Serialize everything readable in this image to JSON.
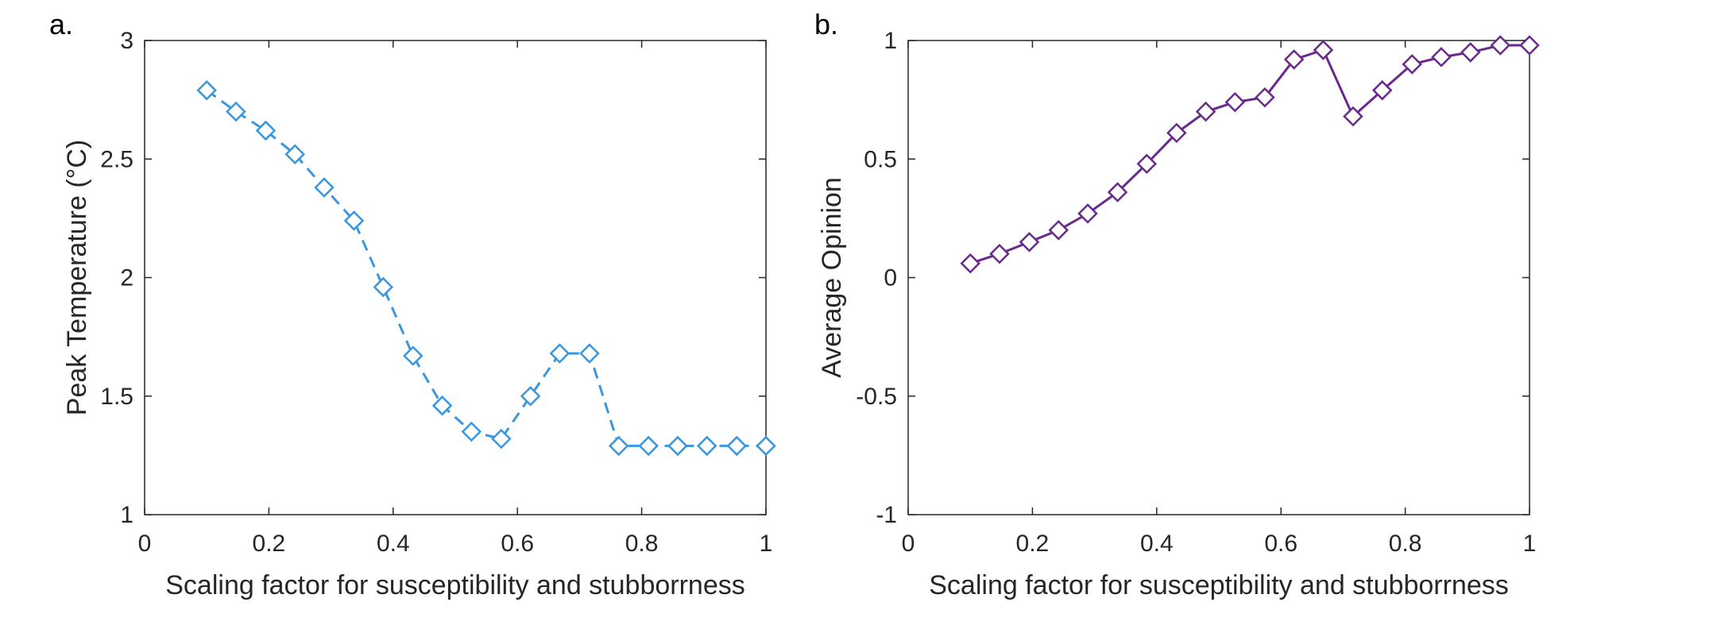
{
  "panels": {
    "a_label": "a.",
    "b_label": "b."
  },
  "chart_data": [
    {
      "type": "line",
      "panel": "a.",
      "xlabel": "Scaling factor for susceptibility and stubborrness",
      "ylabel": "Peak Temperature (°C)",
      "xlim": [
        0,
        1
      ],
      "ylim": [
        1,
        3
      ],
      "xticks": [
        0,
        0.2,
        0.4,
        0.6,
        0.8,
        1
      ],
      "xtick_labels": [
        "0",
        "0.2",
        "0.4",
        "0.6",
        "0.8",
        "1"
      ],
      "yticks": [
        1,
        1.5,
        2,
        2.5,
        3
      ],
      "ytick_labels": [
        "1",
        "1.5",
        "2",
        "2.5",
        "3"
      ],
      "grid": false,
      "line_style": "dashed",
      "marker": "diamond",
      "color": "#3a97de",
      "x": [
        0.1,
        0.147,
        0.195,
        0.242,
        0.289,
        0.337,
        0.384,
        0.432,
        0.479,
        0.526,
        0.574,
        0.621,
        0.668,
        0.716,
        0.763,
        0.811,
        0.858,
        0.905,
        0.953,
        1.0
      ],
      "y": [
        2.79,
        2.7,
        2.62,
        2.52,
        2.38,
        2.24,
        1.96,
        1.67,
        1.46,
        1.35,
        1.32,
        1.5,
        1.68,
        1.68,
        1.29,
        1.29,
        1.29,
        1.29,
        1.29,
        1.29
      ]
    },
    {
      "type": "line",
      "panel": "b.",
      "xlabel": "Scaling factor for susceptibility and stubborrness",
      "ylabel": "Average Opinion",
      "xlim": [
        0,
        1
      ],
      "ylim": [
        -1,
        1
      ],
      "xticks": [
        0,
        0.2,
        0.4,
        0.6,
        0.8,
        1
      ],
      "xtick_labels": [
        "0",
        "0.2",
        "0.4",
        "0.6",
        "0.8",
        "1"
      ],
      "yticks": [
        -1,
        -0.5,
        0,
        0.5,
        1
      ],
      "ytick_labels": [
        "-1",
        "-0.5",
        "0",
        "0.5",
        "1"
      ],
      "grid": false,
      "line_style": "solid",
      "marker": "diamond",
      "color": "#6a2a8c",
      "x": [
        0.1,
        0.147,
        0.195,
        0.242,
        0.289,
        0.337,
        0.384,
        0.432,
        0.479,
        0.526,
        0.574,
        0.621,
        0.668,
        0.716,
        0.763,
        0.811,
        0.858,
        0.905,
        0.953,
        1.0
      ],
      "y": [
        0.06,
        0.1,
        0.15,
        0.2,
        0.27,
        0.36,
        0.48,
        0.61,
        0.7,
        0.74,
        0.76,
        0.92,
        0.96,
        0.68,
        0.79,
        0.9,
        0.93,
        0.95,
        0.98,
        0.98
      ]
    }
  ]
}
